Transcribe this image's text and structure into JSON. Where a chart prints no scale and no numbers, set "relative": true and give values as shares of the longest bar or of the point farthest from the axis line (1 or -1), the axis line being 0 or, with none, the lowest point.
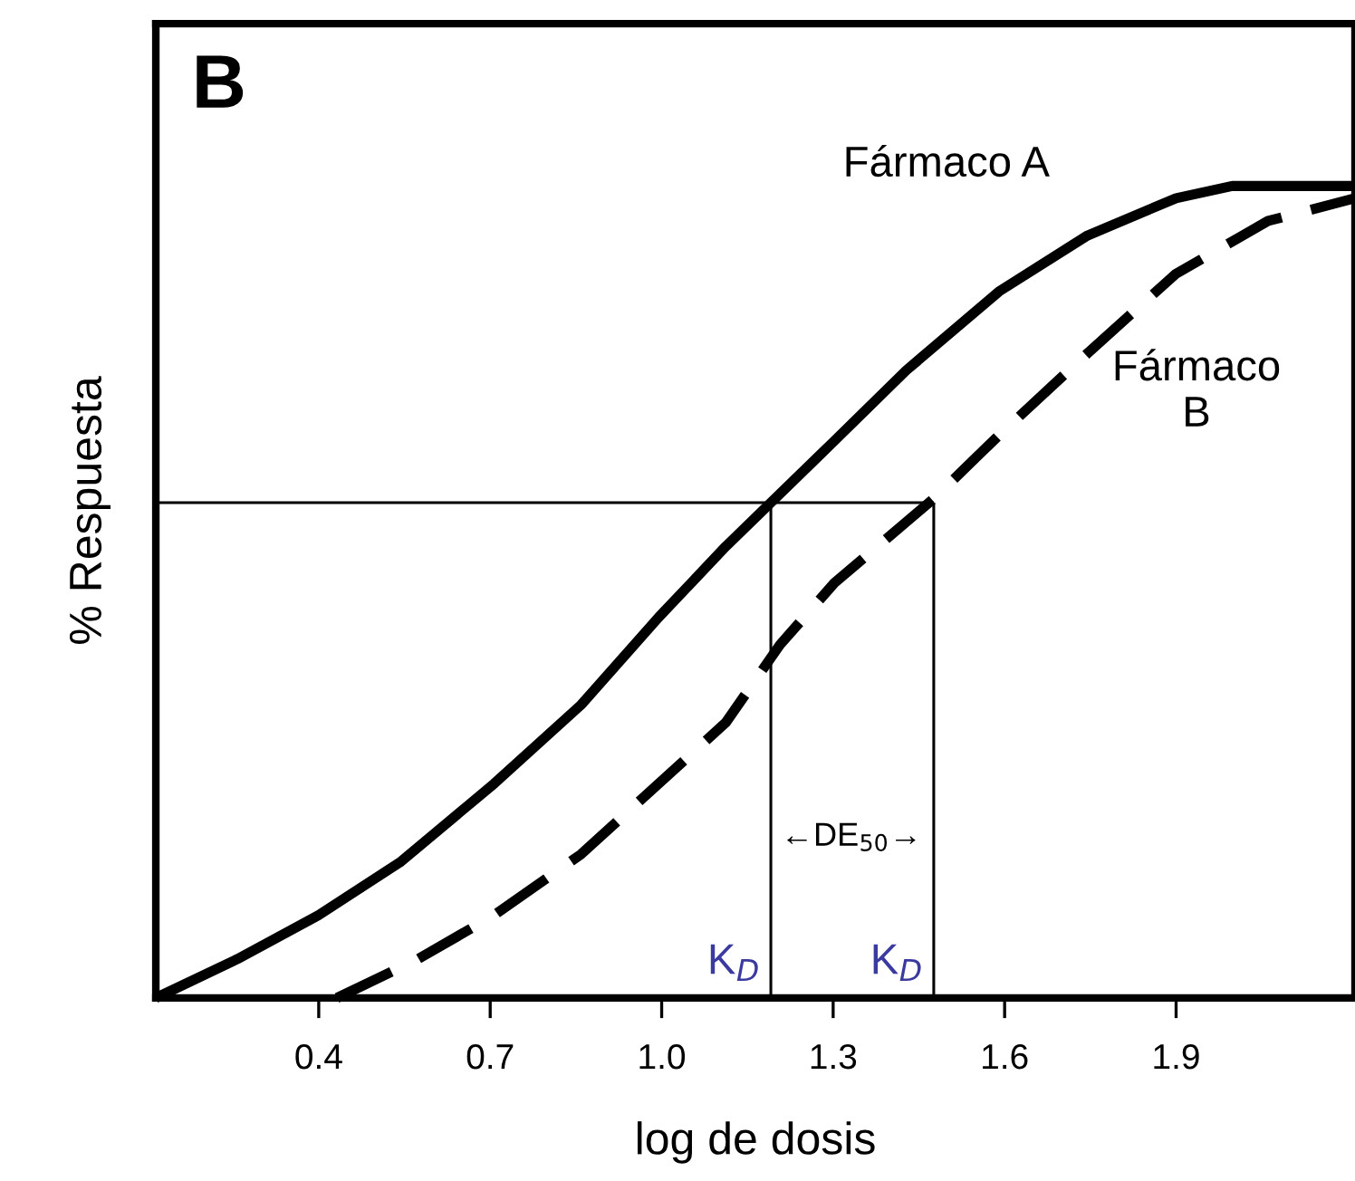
{
  "chart_data": {
    "type": "line",
    "relative": true,
    "xlabel": "log de dosis",
    "ylabel": "% Respuesta",
    "xlim": [
      0.115,
      2.213
    ],
    "xticks": [
      0.4,
      0.7,
      {
        "value": 1.0,
        "label": "1.0"
      },
      1.3,
      1.6,
      1.9
    ],
    "grid": false,
    "legend": false,
    "marker": "none",
    "series": [
      {
        "name": "Fármaco A",
        "color": "#000000",
        "line_style": "solid",
        "x": [
          0.115,
          0.258,
          0.4,
          0.542,
          0.707,
          0.859,
          0.995,
          1.112,
          1.191,
          1.302,
          1.428,
          1.59,
          1.745,
          1.9,
          1.998,
          2.213
        ],
        "values": [
          0,
          0.048,
          0.102,
          0.167,
          0.264,
          0.361,
          0.469,
          0.556,
          0.61,
          0.686,
          0.773,
          0.87,
          0.939,
          0.985,
          1,
          1
        ]
      },
      {
        "name": "Fármaco\nB",
        "color": "#000000",
        "line_style": "dashed",
        "x": [
          0.432,
          0.574,
          0.707,
          0.859,
          0.995,
          1.112,
          1.207,
          1.302,
          1.476,
          1.59,
          1.745,
          1.9,
          2.061,
          2.213
        ],
        "values": [
          0,
          0.048,
          0.102,
          0.177,
          0.264,
          0.339,
          0.435,
          0.511,
          0.615,
          0.693,
          0.794,
          0.892,
          0.957,
          0.985
        ]
      },
      {
        "type": "line",
        "color": "#000000",
        "line_style": "solid",
        "x": [
          0.115,
          1.476
        ],
        "values": [
          0.61,
          0.61
        ]
      },
      {
        "type": "line",
        "color": "#000000",
        "line_style": "solid",
        "x": [
          1.191,
          1.191
        ],
        "values": [
          0,
          0.61
        ]
      },
      {
        "type": "line",
        "color": "#000000",
        "line_style": "solid",
        "x": [
          1.476,
          1.476
        ],
        "values": [
          0,
          0.61
        ]
      }
    ],
    "annotations": [
      "B",
      {
        "text": "K$_{D}$",
        "x": 1.191,
        "y": 0
      },
      {
        "text": "K$_{D}$",
        "x": 1.476,
        "y": 0
      },
      "←DE$_{50}$→"
    ]
  }
}
